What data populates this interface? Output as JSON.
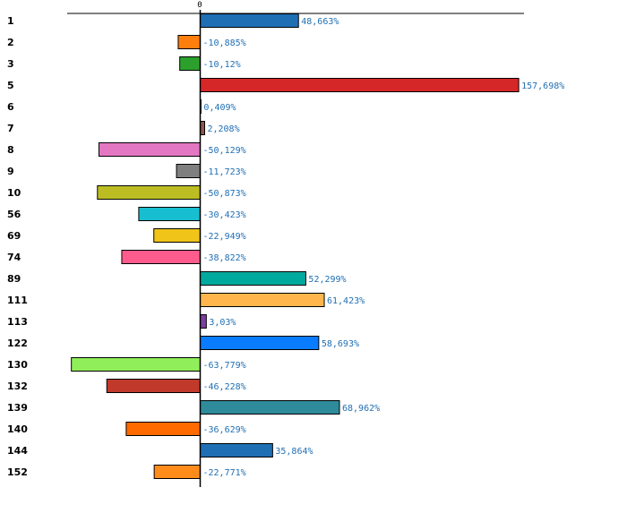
{
  "chart_data": {
    "type": "bar",
    "orientation": "horizontal",
    "title": "",
    "xlabel": "",
    "ylabel": "",
    "zero_tick_label": "0",
    "xlim": [
      -80,
      170
    ],
    "grid": false,
    "legend": "none",
    "categories": [
      "1",
      "2",
      "3",
      "5",
      "6",
      "7",
      "8",
      "9",
      "10",
      "56",
      "69",
      "74",
      "89",
      "111",
      "113",
      "122",
      "130",
      "132",
      "139",
      "140",
      "144",
      "152"
    ],
    "values": [
      48.663,
      -10.885,
      -10.12,
      157.698,
      0.409,
      2.208,
      -50.129,
      -11.723,
      -50.873,
      -30.423,
      -22.949,
      -38.822,
      52.299,
      61.423,
      3.03,
      58.693,
      -63.779,
      -46.228,
      68.962,
      -36.629,
      35.864,
      -22.771
    ],
    "value_labels": [
      "48,663%",
      "-10,885%",
      "-10,12%",
      "157,698%",
      "0,409%",
      "2,208%",
      "-50,129%",
      "-11,723%",
      "-50,873%",
      "-30,423%",
      "-22,949%",
      "-38,822%",
      "52,299%",
      "61,423%",
      "3,03%",
      "58,693%",
      "-63,779%",
      "-46,228%",
      "68,962%",
      "-36,629%",
      "35,864%",
      "-22,771%"
    ],
    "colors": [
      "#1f6fb4",
      "#ff7f0e",
      "#2ca02c",
      "#d62728",
      "#9467bd",
      "#8c564b",
      "#e377c2",
      "#7f7f7f",
      "#bcbd22",
      "#17becf",
      "#f0c419",
      "#ff5c8d",
      "#00a99d",
      "#ffb74d",
      "#7b3f9e",
      "#0a7cff",
      "#90ee5a",
      "#c0392b",
      "#2e8b9a",
      "#ff6a00",
      "#1f6fb4",
      "#ff8c1a"
    ]
  }
}
